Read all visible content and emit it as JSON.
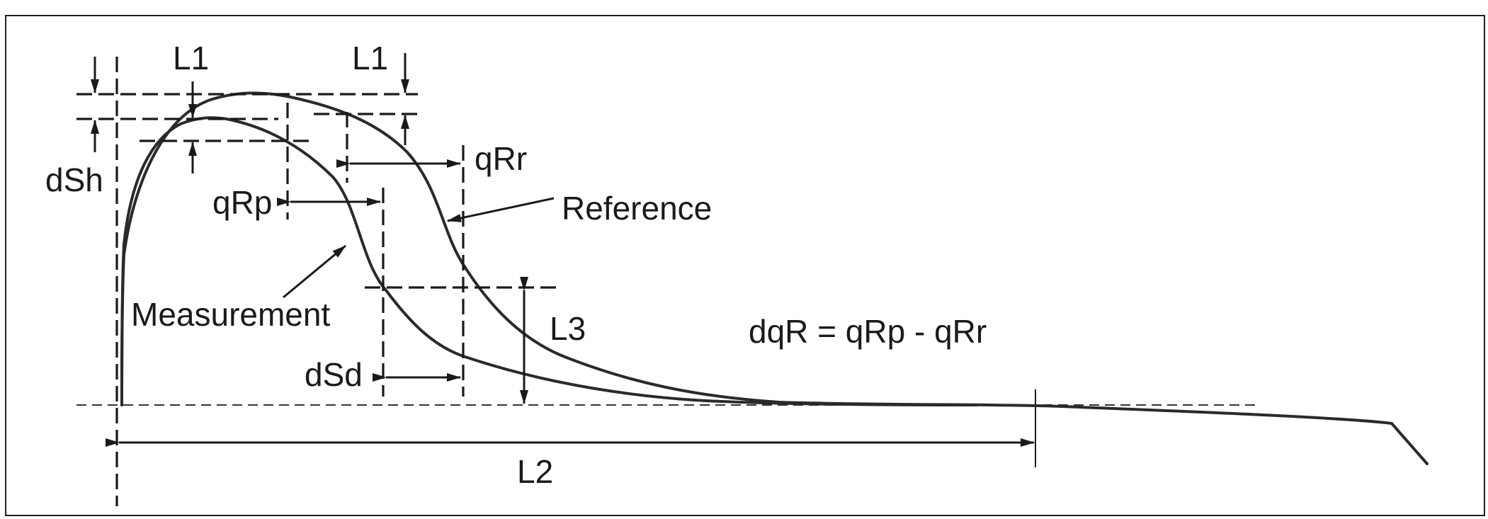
{
  "labels": {
    "l1_left": "L1",
    "l1_right": "L1",
    "dsh": "dSh",
    "qrp": "qRp",
    "qrr": "qRr",
    "reference": "Reference",
    "measurement": "Measurement",
    "l3": "L3",
    "dsd": "dSd",
    "l2": "L2",
    "formula": "dqR = qRp - qRr"
  }
}
